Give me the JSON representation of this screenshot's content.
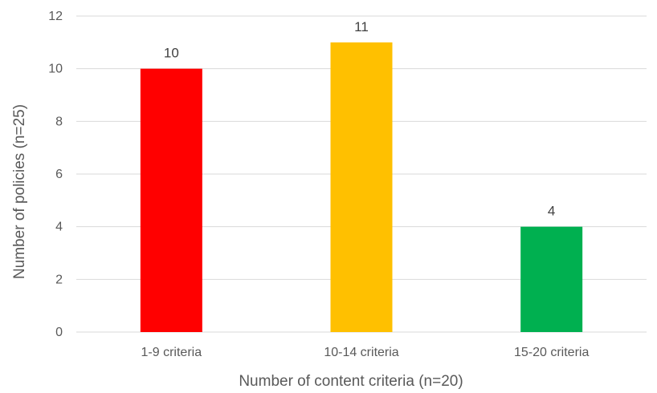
{
  "chart_data": {
    "type": "bar",
    "title": "",
    "xlabel": "Number of content criteria (n=20)",
    "ylabel": "Number of policies (n=25)",
    "categories": [
      "1-9 criteria",
      "10-14 criteria",
      "15-20 criteria"
    ],
    "values": [
      10,
      11,
      4
    ],
    "data_labels": [
      "10",
      "11",
      "4"
    ],
    "bar_colors": [
      "#ff0000",
      "#ffc000",
      "#00b050"
    ],
    "ylim": [
      0,
      12
    ],
    "yticks": [
      0,
      2,
      4,
      6,
      8,
      10,
      12
    ],
    "grid": true,
    "legend": "none"
  }
}
